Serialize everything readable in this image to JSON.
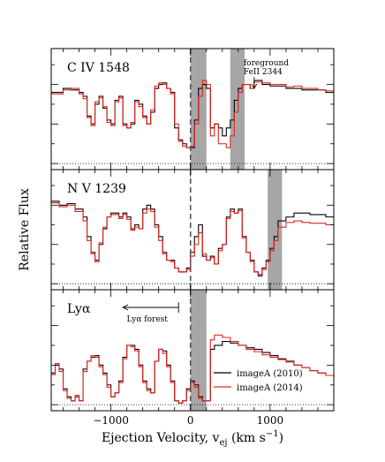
{
  "chart_data": {
    "type": "line",
    "xlabel": "Ejection Velocity, v",
    "xlabel_sub": "ej",
    "xlabel_unit_open": " (km s",
    "xlabel_unit_sup": "−1",
    "xlabel_unit_close": ")",
    "ylabel": "Relative Flux",
    "xlim": [
      -1750,
      1800
    ],
    "x_ticks": [
      -1000,
      0,
      1000
    ],
    "x_tick_labels": [
      "−1000",
      "0",
      "1000"
    ],
    "zero_velocity_dashed_line": 0,
    "series_styles": [
      {
        "name": "imageA (2010)",
        "color": "#000000"
      },
      {
        "name": "imageA (2014)",
        "color": "#e3241b"
      }
    ],
    "legend": {
      "placement": "lower-right",
      "entries": [
        "imageA (2010)",
        "imageA (2014)"
      ]
    },
    "panels": [
      {
        "label": "C IV 1548",
        "ylim": [
          0,
          1.3
        ],
        "zero_level": 0,
        "shaded_regions": [
          [
            0,
            200
          ],
          [
            500,
            680
          ]
        ],
        "annotation": {
          "lines": [
            "foreground",
            "FeII 2344"
          ],
          "arrow_x": 800
        },
        "series": [
          {
            "name": "imageA (2010)",
            "x": [
              -1750,
              -1600,
              -1500,
              -1400,
              -1350,
              -1300,
              -1250,
              -1200,
              -1150,
              -1100,
              -1050,
              -1000,
              -950,
              -900,
              -850,
              -800,
              -750,
              -700,
              -650,
              -600,
              -550,
              -500,
              -450,
              -400,
              -350,
              -300,
              -250,
              -200,
              -150,
              -100,
              -50,
              0,
              50,
              100,
              150,
              200,
              250,
              300,
              350,
              400,
              450,
              500,
              550,
              600,
              650,
              700,
              750,
              800,
              900,
              1000,
              1100,
              1200,
              1300,
              1400,
              1500,
              1600,
              1700,
              1800
            ],
            "y": [
              0.9,
              0.95,
              0.93,
              0.9,
              0.85,
              0.6,
              0.5,
              0.75,
              0.85,
              0.7,
              0.55,
              0.5,
              0.8,
              0.85,
              0.5,
              0.45,
              0.5,
              0.8,
              0.75,
              0.6,
              0.5,
              0.65,
              0.95,
              1.0,
              1.02,
              0.95,
              0.9,
              0.45,
              0.3,
              0.25,
              0.2,
              0.2,
              0.55,
              0.95,
              1.0,
              0.95,
              0.45,
              0.5,
              0.45,
              0.35,
              0.45,
              0.55,
              0.8,
              0.95,
              1.0,
              1.0,
              0.95,
              1.05,
              1.0,
              0.98,
              0.98,
              0.95,
              0.95,
              0.93,
              0.93,
              0.93,
              0.9,
              0.9
            ]
          },
          {
            "name": "imageA (2014)",
            "x": [
              -1750,
              -1600,
              -1500,
              -1400,
              -1350,
              -1300,
              -1250,
              -1200,
              -1150,
              -1100,
              -1050,
              -1000,
              -950,
              -900,
              -850,
              -800,
              -750,
              -700,
              -650,
              -600,
              -550,
              -500,
              -450,
              -400,
              -350,
              -300,
              -250,
              -200,
              -150,
              -100,
              -50,
              0,
              50,
              100,
              150,
              200,
              250,
              300,
              350,
              400,
              450,
              500,
              550,
              600,
              650,
              700,
              750,
              800,
              900,
              1000,
              1100,
              1200,
              1300,
              1400,
              1500,
              1600,
              1700,
              1800
            ],
            "y": [
              0.88,
              0.93,
              0.95,
              0.88,
              0.82,
              0.58,
              0.48,
              0.78,
              0.83,
              0.72,
              0.52,
              0.48,
              0.78,
              0.83,
              0.48,
              0.45,
              0.52,
              0.78,
              0.72,
              0.58,
              0.5,
              0.68,
              0.98,
              1.02,
              1.0,
              0.95,
              0.88,
              0.5,
              0.28,
              0.22,
              0.2,
              0.22,
              0.5,
              0.85,
              1.05,
              1.0,
              0.35,
              0.5,
              0.25,
              0.25,
              0.2,
              0.35,
              0.65,
              0.9,
              1.0,
              1.0,
              0.95,
              1.03,
              1.02,
              1.0,
              1.0,
              0.97,
              0.98,
              0.95,
              0.95,
              0.93,
              0.92,
              0.9
            ]
          }
        ]
      },
      {
        "label": "N V 1239",
        "ylim": [
          0,
          1.3
        ],
        "zero_level": 0,
        "shaded_regions": [
          [
            970,
            1150
          ]
        ],
        "series": [
          {
            "name": "imageA (2010)",
            "x": [
              -1750,
              -1650,
              -1550,
              -1450,
              -1350,
              -1300,
              -1250,
              -1200,
              -1150,
              -1100,
              -1050,
              -1000,
              -950,
              -900,
              -850,
              -800,
              -750,
              -700,
              -650,
              -600,
              -550,
              -500,
              -450,
              -400,
              -350,
              -300,
              -250,
              -200,
              -150,
              -100,
              -50,
              0,
              50,
              100,
              150,
              200,
              250,
              300,
              350,
              400,
              450,
              500,
              550,
              600,
              650,
              700,
              750,
              800,
              850,
              900,
              950,
              1000,
              1050,
              1100,
              1200,
              1300,
              1400,
              1500,
              1600,
              1700,
              1800
            ],
            "y": [
              1.05,
              1.0,
              1.02,
              0.95,
              0.85,
              0.6,
              0.4,
              0.3,
              0.5,
              0.7,
              0.85,
              0.9,
              0.9,
              0.85,
              0.9,
              0.85,
              0.7,
              0.75,
              0.7,
              0.95,
              1.0,
              0.95,
              0.75,
              0.6,
              0.4,
              0.3,
              0.3,
              0.2,
              0.15,
              0.15,
              0.2,
              0.4,
              0.6,
              0.75,
              0.35,
              0.3,
              0.35,
              0.25,
              0.45,
              0.5,
              0.85,
              0.95,
              0.9,
              0.95,
              0.6,
              0.4,
              0.3,
              0.15,
              0.1,
              0.2,
              0.3,
              0.45,
              0.6,
              0.8,
              0.85,
              0.9,
              0.9,
              0.88,
              0.88,
              0.85,
              0.85
            ]
          },
          {
            "name": "imageA (2014)",
            "x": [
              -1750,
              -1650,
              -1550,
              -1450,
              -1350,
              -1300,
              -1250,
              -1200,
              -1150,
              -1100,
              -1050,
              -1000,
              -950,
              -900,
              -850,
              -800,
              -750,
              -700,
              -650,
              -600,
              -550,
              -500,
              -450,
              -400,
              -350,
              -300,
              -250,
              -200,
              -150,
              -100,
              -50,
              0,
              50,
              100,
              150,
              200,
              250,
              300,
              350,
              400,
              450,
              500,
              550,
              600,
              650,
              700,
              750,
              800,
              850,
              900,
              950,
              1000,
              1050,
              1100,
              1200,
              1300,
              1400,
              1500,
              1600,
              1700,
              1800
            ],
            "y": [
              1.03,
              0.98,
              1.0,
              0.92,
              0.8,
              0.55,
              0.38,
              0.28,
              0.52,
              0.72,
              0.85,
              0.88,
              0.88,
              0.83,
              0.88,
              0.82,
              0.68,
              0.72,
              0.7,
              0.9,
              0.95,
              0.92,
              0.72,
              0.55,
              0.38,
              0.3,
              0.28,
              0.2,
              0.15,
              0.15,
              0.18,
              0.35,
              0.5,
              0.65,
              0.38,
              0.3,
              0.33,
              0.25,
              0.42,
              0.5,
              0.83,
              0.92,
              0.9,
              0.93,
              0.58,
              0.4,
              0.28,
              0.15,
              0.12,
              0.18,
              0.28,
              0.42,
              0.55,
              0.72,
              0.78,
              0.8,
              0.78,
              0.77,
              0.77,
              0.75,
              0.75
            ]
          }
        ]
      },
      {
        "label": "Lyα",
        "ylim": [
          0,
          1.3
        ],
        "zero_level": 0,
        "shaded_regions": [
          [
            0,
            200
          ]
        ],
        "annotation": {
          "text": "Lyα forest",
          "arrow_from_x": -150,
          "arrow_to_x": -850
        },
        "series": [
          {
            "name": "imageA (2010)",
            "x": [
              -1750,
              -1700,
              -1650,
              -1600,
              -1550,
              -1500,
              -1450,
              -1400,
              -1350,
              -1300,
              -1250,
              -1200,
              -1150,
              -1100,
              -1050,
              -1000,
              -950,
              -900,
              -850,
              -800,
              -750,
              -700,
              -650,
              -600,
              -550,
              -500,
              -450,
              -400,
              -350,
              -300,
              -250,
              -200,
              -150,
              -100,
              -50,
              0,
              50,
              100,
              150,
              200,
              250,
              300,
              400,
              500,
              600,
              700,
              800,
              900,
              1000,
              1100,
              1200,
              1300,
              1400,
              1500,
              1600,
              1700,
              1800
            ],
            "y": [
              0.4,
              0.5,
              0.45,
              0.2,
              0.1,
              0.05,
              0.1,
              0.05,
              0.45,
              0.55,
              0.6,
              0.62,
              0.5,
              0.4,
              0.25,
              0.1,
              0.15,
              0.3,
              0.6,
              0.75,
              0.75,
              0.7,
              0.5,
              0.3,
              0.2,
              0.15,
              0.55,
              0.7,
              0.68,
              0.5,
              0.3,
              0.05,
              0.02,
              0.05,
              0.2,
              0.3,
              0.25,
              0.1,
              0.05,
              0.05,
              0.7,
              0.75,
              0.8,
              0.78,
              0.75,
              0.72,
              0.7,
              0.66,
              0.62,
              0.58,
              0.55,
              0.5,
              0.47,
              0.43,
              0.4,
              0.37,
              0.35
            ]
          },
          {
            "name": "imageA (2014)",
            "x": [
              -1750,
              -1700,
              -1650,
              -1600,
              -1550,
              -1500,
              -1450,
              -1400,
              -1350,
              -1300,
              -1250,
              -1200,
              -1150,
              -1100,
              -1050,
              -1000,
              -950,
              -900,
              -850,
              -800,
              -750,
              -700,
              -650,
              -600,
              -550,
              -500,
              -450,
              -400,
              -350,
              -300,
              -250,
              -200,
              -150,
              -100,
              -50,
              0,
              50,
              100,
              150,
              200,
              250,
              300,
              400,
              500,
              600,
              700,
              800,
              900,
              1000,
              1100,
              1200,
              1300,
              1400,
              1500,
              1600,
              1700,
              1800
            ],
            "y": [
              0.38,
              0.52,
              0.42,
              0.18,
              0.08,
              0.05,
              0.12,
              0.05,
              0.42,
              0.55,
              0.62,
              0.6,
              0.48,
              0.38,
              0.22,
              0.1,
              0.15,
              0.28,
              0.58,
              0.75,
              0.73,
              0.68,
              0.48,
              0.28,
              0.18,
              0.15,
              0.55,
              0.7,
              0.65,
              0.48,
              0.28,
              0.05,
              0.02,
              0.05,
              0.18,
              0.28,
              0.22,
              0.08,
              0.05,
              0.05,
              0.82,
              0.88,
              0.85,
              0.8,
              0.75,
              0.7,
              0.67,
              0.63,
              0.6,
              0.57,
              0.54,
              0.5,
              0.47,
              0.43,
              0.4,
              0.37,
              0.35
            ]
          }
        ]
      }
    ]
  }
}
